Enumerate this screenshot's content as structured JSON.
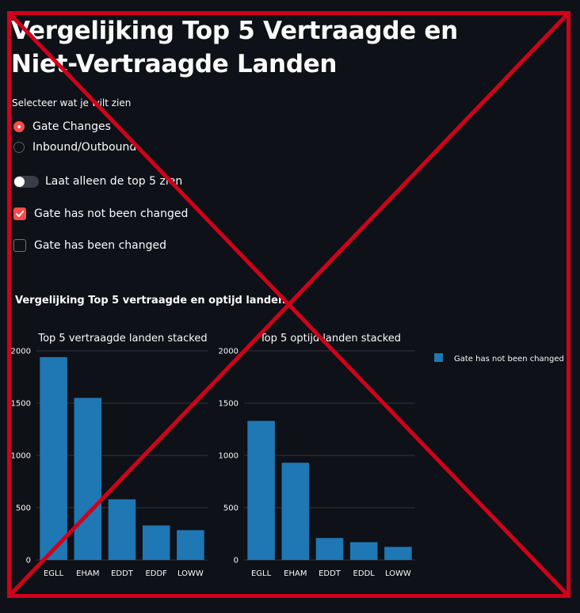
{
  "page": {
    "title": "Vergelijking Top 5 Vertraagde en Niet-Vertraagde Landen"
  },
  "controls": {
    "radio_caption": "Selecteer wat je wilt zien",
    "radio_options": [
      {
        "label": "Gate Changes",
        "selected": true
      },
      {
        "label": "Inbound/Outbound",
        "selected": false
      }
    ],
    "toggle": {
      "label": "Laat alleen de top 5 zien",
      "on": false
    },
    "checkboxes": [
      {
        "label": "Gate has not been changed",
        "checked": true
      },
      {
        "label": "Gate has been changed",
        "checked": false
      }
    ]
  },
  "colors": {
    "background": "#0e1117",
    "accent": "#ff4b4b",
    "bar": "#1f77b4",
    "overlay_cross": "#d0021b"
  },
  "chart_section": {
    "title": "Vergelijking Top 5 vertraagde en optijd landen"
  },
  "chart_data": [
    {
      "type": "bar",
      "title": "Top 5 vertraagde landen stacked",
      "categories": [
        "EGLL",
        "EHAM",
        "EDDT",
        "EDDF",
        "LOWW"
      ],
      "series": [
        {
          "name": "Gate has not been changed",
          "values": [
            1940,
            1550,
            580,
            330,
            285
          ]
        }
      ],
      "xlabel": "",
      "ylabel": "",
      "ylim": [
        0,
        2000
      ],
      "yticks": [
        0,
        500,
        1000,
        1500,
        2000
      ],
      "grid": true,
      "legend": "right"
    },
    {
      "type": "bar",
      "title": "Top 5 optijd landen stacked",
      "categories": [
        "EGLL",
        "EHAM",
        "EDDT",
        "EDDL",
        "LOWW"
      ],
      "series": [
        {
          "name": "Gate has not been changed",
          "values": [
            1330,
            930,
            210,
            170,
            125
          ]
        }
      ],
      "xlabel": "",
      "ylabel": "",
      "ylim": [
        0,
        2000
      ],
      "yticks": [
        0,
        500,
        1000,
        1500,
        2000
      ],
      "grid": true,
      "legend": "right"
    }
  ]
}
